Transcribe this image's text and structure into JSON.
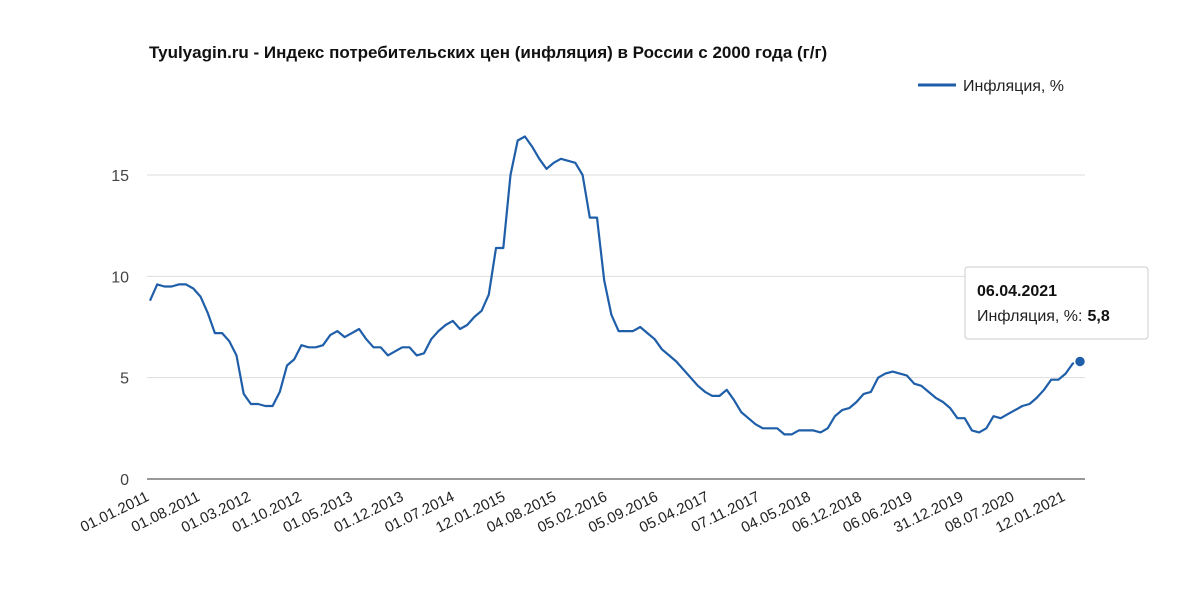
{
  "chart_data": {
    "type": "line",
    "title": "Tyulyagin.ru - Индекс потребительских цен (инфляция) в России с 2000 года (г/г)",
    "legend": {
      "position": "top-right",
      "entries": [
        "Инфляция, %"
      ]
    },
    "ylim": [
      0,
      17.5
    ],
    "yticks": [
      "0",
      "5",
      "10",
      "15"
    ],
    "grid": true,
    "x_tick_labels": [
      "01.01.2011",
      "01.08.2011",
      "01.03.2012",
      "01.10.2012",
      "01.05.2013",
      "01.12.2013",
      "01.07.2014",
      "12.01.2015",
      "04.08.2015",
      "05.02.2016",
      "05.09.2016",
      "05.04.2017",
      "07.11.2017",
      "04.05.2018",
      "06.12.2018",
      "06.06.2019",
      "31.12.2019",
      "08.07.2020",
      "12.01.2021"
    ],
    "series": [
      {
        "name": "Инфляция, %",
        "color": "#1f5ea8",
        "values": [
          8.8,
          9.6,
          9.5,
          9.5,
          9.6,
          9.6,
          9.4,
          9.0,
          8.2,
          7.2,
          7.2,
          6.8,
          6.1,
          4.2,
          3.7,
          3.7,
          3.6,
          3.6,
          4.3,
          5.6,
          5.9,
          6.6,
          6.5,
          6.5,
          6.6,
          7.1,
          7.3,
          7.0,
          7.2,
          7.4,
          6.9,
          6.5,
          6.5,
          6.1,
          6.3,
          6.5,
          6.5,
          6.1,
          6.2,
          6.9,
          7.3,
          7.6,
          7.8,
          7.4,
          7.6,
          8.0,
          8.3,
          9.1,
          11.4,
          11.4,
          15.0,
          16.7,
          16.9,
          16.4,
          15.8,
          15.3,
          15.6,
          15.8,
          15.7,
          15.6,
          15.0,
          12.9,
          12.9,
          9.8,
          8.1,
          7.3,
          7.3,
          7.3,
          7.5,
          7.2,
          6.9,
          6.4,
          6.1,
          5.8,
          5.4,
          5.0,
          4.6,
          4.3,
          4.1,
          4.1,
          4.4,
          3.9,
          3.3,
          3.0,
          2.7,
          2.5,
          2.5,
          2.5,
          2.2,
          2.2,
          2.4,
          2.4,
          2.4,
          2.3,
          2.5,
          3.1,
          3.4,
          3.5,
          3.8,
          4.2,
          4.3,
          5.0,
          5.2,
          5.3,
          5.2,
          5.1,
          4.7,
          4.6,
          4.3,
          4.0,
          3.8,
          3.5,
          3.0,
          3.0,
          2.4,
          2.3,
          2.5,
          3.1,
          3.0,
          3.2,
          3.4,
          3.6,
          3.7,
          4.0,
          4.4,
          4.9,
          4.9,
          5.2,
          5.7,
          5.8
        ]
      }
    ],
    "tooltip": {
      "date": "06.04.2021",
      "label": "Инфляция, %:",
      "value": "5,8"
    }
  }
}
